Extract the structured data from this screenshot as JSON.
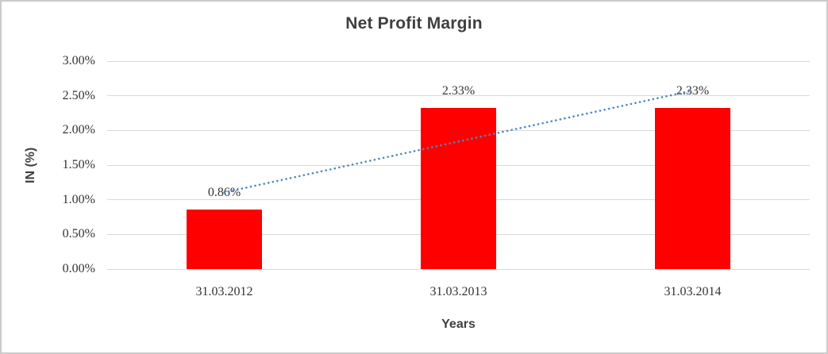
{
  "chart_data": {
    "type": "bar",
    "title": "Net Profit Margin",
    "xlabel": "Years",
    "ylabel": "IN (%)",
    "categories": [
      "31.03.2012",
      "31.03.2013",
      "31.03.2014"
    ],
    "values": [
      0.86,
      2.33,
      2.33
    ],
    "data_labels": [
      "0.86%",
      "2.33%",
      "2.33%"
    ],
    "ylim": [
      0,
      3
    ],
    "yticks_top_to_bottom": [
      "3.00%",
      "2.50%",
      "2.00%",
      "1.50%",
      "1.00%",
      "0.50%",
      "0.00%"
    ],
    "grid": "horizontal",
    "legend": "none",
    "bar_color": "#ff0000",
    "gridline_color": "#d9d9d9",
    "trendline": {
      "type": "linear",
      "style": "dotted",
      "color": "#4e86c8"
    }
  }
}
